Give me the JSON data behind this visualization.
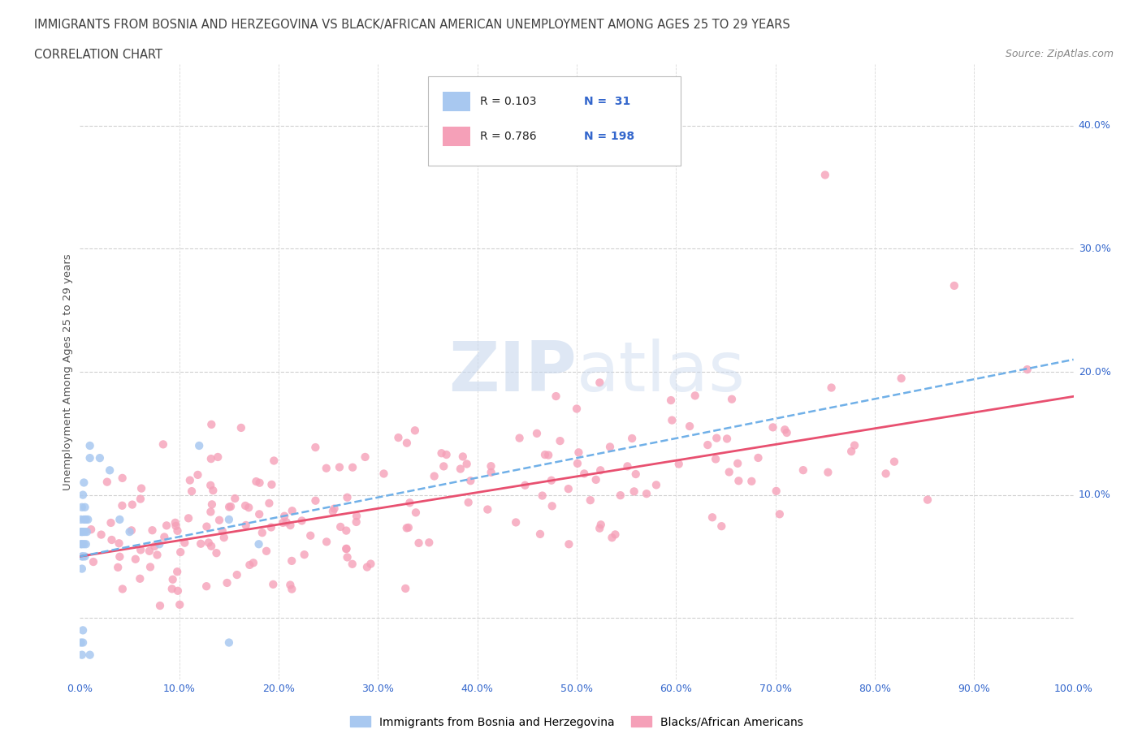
{
  "title_line1": "IMMIGRANTS FROM BOSNIA AND HERZEGOVINA VS BLACK/AFRICAN AMERICAN UNEMPLOYMENT AMONG AGES 25 TO 29 YEARS",
  "title_line2": "CORRELATION CHART",
  "source_text": "Source: ZipAtlas.com",
  "ylabel": "Unemployment Among Ages 25 to 29 years",
  "xlim": [
    0.0,
    1.0
  ],
  "ylim": [
    -0.05,
    0.45
  ],
  "blue_R": 0.103,
  "blue_N": 31,
  "pink_R": 0.786,
  "pink_N": 198,
  "blue_color": "#a8c8f0",
  "pink_color": "#f5a0b8",
  "blue_line_color": "#70b0e8",
  "pink_line_color": "#e85070",
  "legend_label_blue": "Immigrants from Bosnia and Herzegovina",
  "legend_label_pink": "Blacks/African Americans",
  "background_color": "#ffffff",
  "grid_color": "#cccccc",
  "title_color": "#404040",
  "right_ytick_labels": [
    "10.0%",
    "20.0%",
    "30.0%",
    "40.0%"
  ],
  "right_ytick_values": [
    0.1,
    0.2,
    0.3,
    0.4
  ]
}
